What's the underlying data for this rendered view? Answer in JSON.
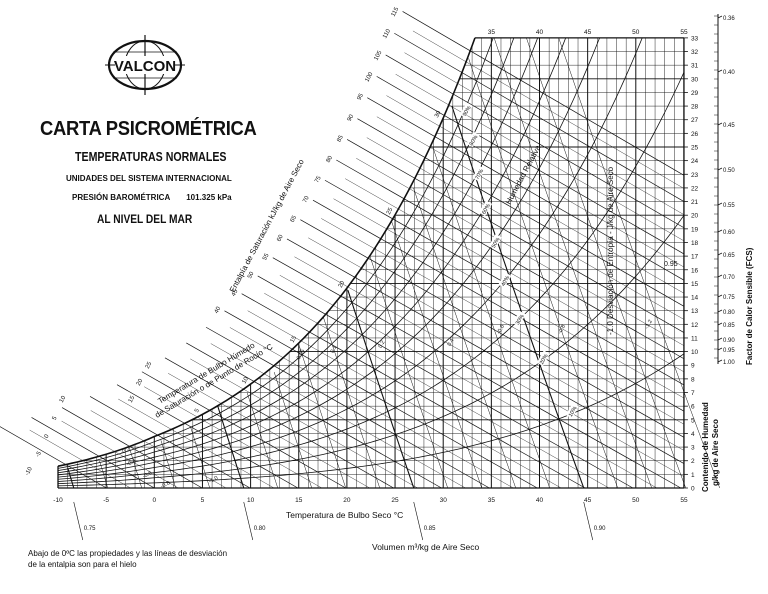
{
  "header": {
    "logo_text": "VALCON",
    "title": "CARTA PSICROMÉTRICA",
    "subtitle": "TEMPERATURAS NORMALES",
    "units": "UNIDADES DEL SISTEMA INTERNACIONAL",
    "pressure_label": "PRESIÓN BAROMÉTRICA",
    "pressure_value": "101.325 kPa",
    "altitude": "AL NIVEL DEL MAR"
  },
  "axes": {
    "dry_bulb_label": "Temperatura de Bulbo Seco   °C",
    "dry_bulb_ticks": [
      -10,
      -5,
      0,
      5,
      10,
      15,
      20,
      25,
      30,
      35,
      40,
      45,
      50,
      55
    ],
    "top_ticks": [
      35,
      40,
      45,
      50,
      55
    ],
    "humidity_label_1": "Contenido de Humedad",
    "humidity_label_2": "g/kg de Aire Seco",
    "humidity_ticks_max": 33,
    "enthalpy_label": "Entalpía de Saturación   kJ/kg de Aire Seco",
    "enthalpy_ticks": [
      40,
      45,
      50,
      55,
      60,
      65,
      70,
      75,
      80,
      85,
      90,
      95,
      100,
      105,
      110,
      115
    ],
    "wet_bulb_label_1": "Temperatura de Bulbo Húmedo",
    "wet_bulb_label_2": "de Saturación o de Punto de Rocío   °C",
    "wet_bulb_ticks": [
      -10,
      -5,
      0,
      5,
      10,
      15,
      20,
      25
    ],
    "wet_bulb_sat_labels": [
      5,
      10,
      15,
      20,
      25,
      30
    ],
    "volume_label": "Volumen    m³/kg de Aire Seco",
    "volume_ticks": [
      "0.75",
      "0.80",
      "0.85",
      "0.90"
    ],
    "rh_label": "Humedad Relativa",
    "rh_values": [
      10,
      20,
      30,
      40,
      50,
      60,
      70,
      80,
      90
    ],
    "entropy_label": "-1.0 Desviación de Entropía  - J/kg de Aire Seco",
    "deviation_labels": [
      "-0.2",
      "-0.4",
      "-0.6",
      "-0.8",
      "-1.0",
      "0.05",
      "0.1",
      "0.2",
      "0.4",
      "-0.6",
      "-0.8",
      "-1.2"
    ],
    "shr_label": "Factor de Calor Sensible  (FCS)",
    "shr_ticks": [
      "0.36",
      "0.40",
      "0.45",
      "0.50",
      "0.55",
      "0.60",
      "0.65",
      "0.70",
      "0.75",
      "0.80",
      "0.85",
      "0.90",
      "0.95",
      "1.00"
    ],
    "shr_inchart_label": "0.95"
  },
  "note": "Abajo de 0ºC las propiedades y las líneas de desviación de la entalpia son para el hielo",
  "colors": {
    "ink": "#111111",
    "background": "#ffffff"
  }
}
